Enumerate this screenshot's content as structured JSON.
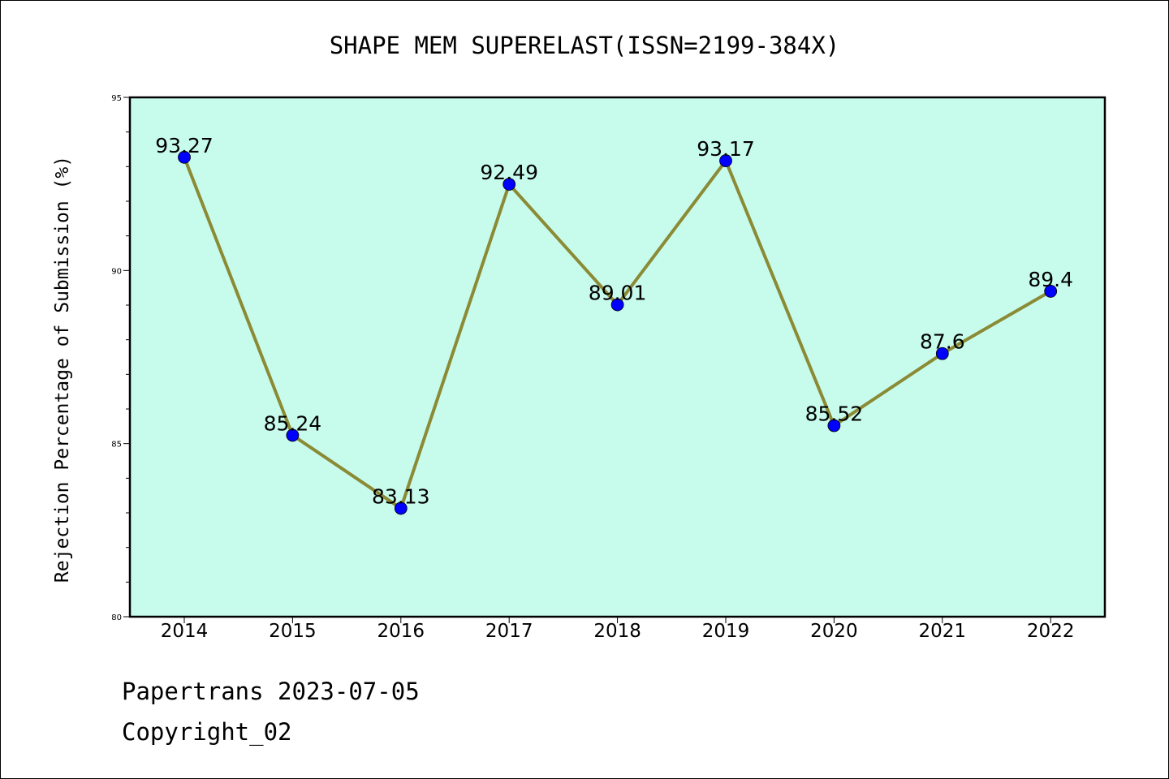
{
  "chart_data": {
    "type": "line",
    "title": "SHAPE MEM SUPERELAST(ISSN=2199-384X)",
    "ylabel": "Rejection Percentage of Submission (%)",
    "xlabel": "",
    "categories": [
      "2014",
      "2015",
      "2016",
      "2017",
      "2018",
      "2019",
      "2020",
      "2021",
      "2022"
    ],
    "series": [
      {
        "values": [
          93.27,
          85.24,
          83.13,
          92.49,
          89.01,
          93.17,
          85.52,
          87.6,
          89.4
        ],
        "labels": [
          "93.27",
          "85.24",
          "83.13",
          "92.49",
          "89.01",
          "93.17",
          "85.52",
          "87.6",
          "89.4"
        ]
      }
    ],
    "ylim": [
      80,
      95
    ],
    "yticks": [
      80,
      85,
      90,
      95
    ],
    "ytick_labels": [
      "80",
      "85",
      "90",
      "95"
    ],
    "grid": false,
    "colors": {
      "plot_background": "#c7fcec",
      "line": "#8b8a35",
      "marker": "#0000ff"
    }
  },
  "footer": {
    "line1": "Papertrans 2023-07-05",
    "line2": "Copyright_02"
  }
}
